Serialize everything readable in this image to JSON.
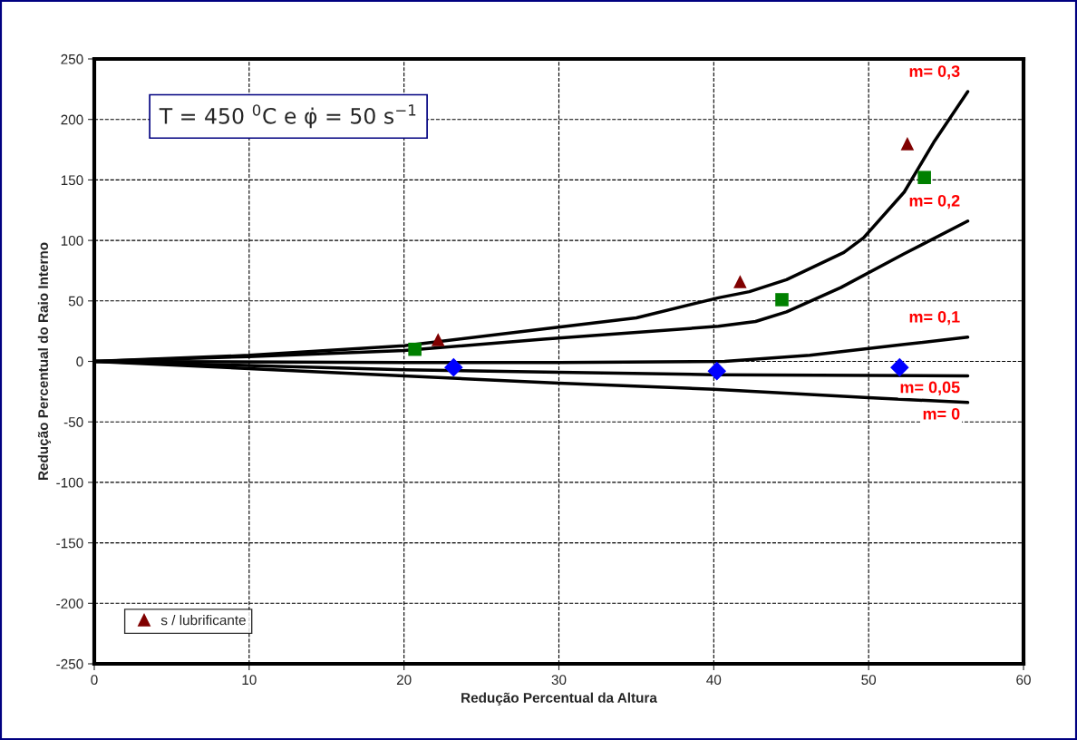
{
  "chart_data": {
    "type": "line",
    "xlabel": "Redução Percentual da Altura",
    "ylabel": "Redução Percentual do Raio Interno",
    "annotations": [
      "T = 450 $^{0}$C e φ̇ = 50 s$^{−1}$"
    ],
    "xlim": [
      0,
      60
    ],
    "xticks": [
      0,
      10,
      20,
      30,
      40,
      50,
      60
    ],
    "ylim": [
      -250,
      250
    ],
    "yticks": [
      -250,
      -200,
      -150,
      -100,
      -50,
      0,
      50,
      100,
      150,
      200,
      250
    ],
    "grid": true,
    "legend": "bottom left",
    "series": [
      {
        "name": "m= 0,3",
        "color": "#000000",
        "marker": "none",
        "x": [
          0,
          10,
          20,
          29,
          35,
          40.3,
          42.3,
          44.7,
          48.4,
          49.7,
          52.3,
          54.2,
          56.4
        ],
        "values": [
          0,
          5,
          13,
          26.8,
          36,
          52.6,
          57.6,
          67.6,
          90,
          102.5,
          140,
          181,
          223
        ]
      },
      {
        "name": "m= 0,2",
        "color": "#000000",
        "marker": "none",
        "x": [
          0,
          10,
          20,
          29,
          40.3,
          42.7,
          44.7,
          48.2,
          52.3,
          56.4
        ],
        "values": [
          0,
          4,
          9,
          18.4,
          29,
          33,
          41,
          61,
          89,
          116
        ]
      },
      {
        "name": "m= 0,1",
        "color": "#000000",
        "marker": "none",
        "x": [
          0,
          20,
          30,
          40.7,
          46.2,
          52.3,
          56.4
        ],
        "values": [
          0,
          -1,
          -1,
          0,
          5,
          14,
          20
        ]
      },
      {
        "name": "m= 0,05",
        "color": "#000000",
        "marker": "none",
        "x": [
          0,
          20,
          30,
          40,
          56.4
        ],
        "values": [
          0,
          -7,
          -9,
          -11,
          -12
        ]
      },
      {
        "name": "m= 0",
        "color": "#000000",
        "marker": "none",
        "x": [
          0,
          10,
          20,
          30,
          40,
          50,
          56.4
        ],
        "values": [
          0,
          -6,
          -12,
          -18,
          -23,
          -30,
          -34
        ]
      },
      {
        "name": "s / lubrificante",
        "type": "scatter",
        "color": "#800000",
        "marker": "triangle",
        "x": [
          22.2,
          41.7,
          52.5
        ],
        "values": [
          18,
          66,
          180
        ]
      },
      {
        "type": "scatter",
        "color": "#008000",
        "marker": "square",
        "x": [
          20.7,
          44.4,
          53.6
        ],
        "values": [
          10,
          51,
          152
        ]
      },
      {
        "type": "scatter",
        "color": "#0000ff",
        "marker": "diamond",
        "x": [
          23.2,
          40.2,
          52.0
        ],
        "values": [
          -5,
          -8,
          -5
        ]
      }
    ]
  }
}
